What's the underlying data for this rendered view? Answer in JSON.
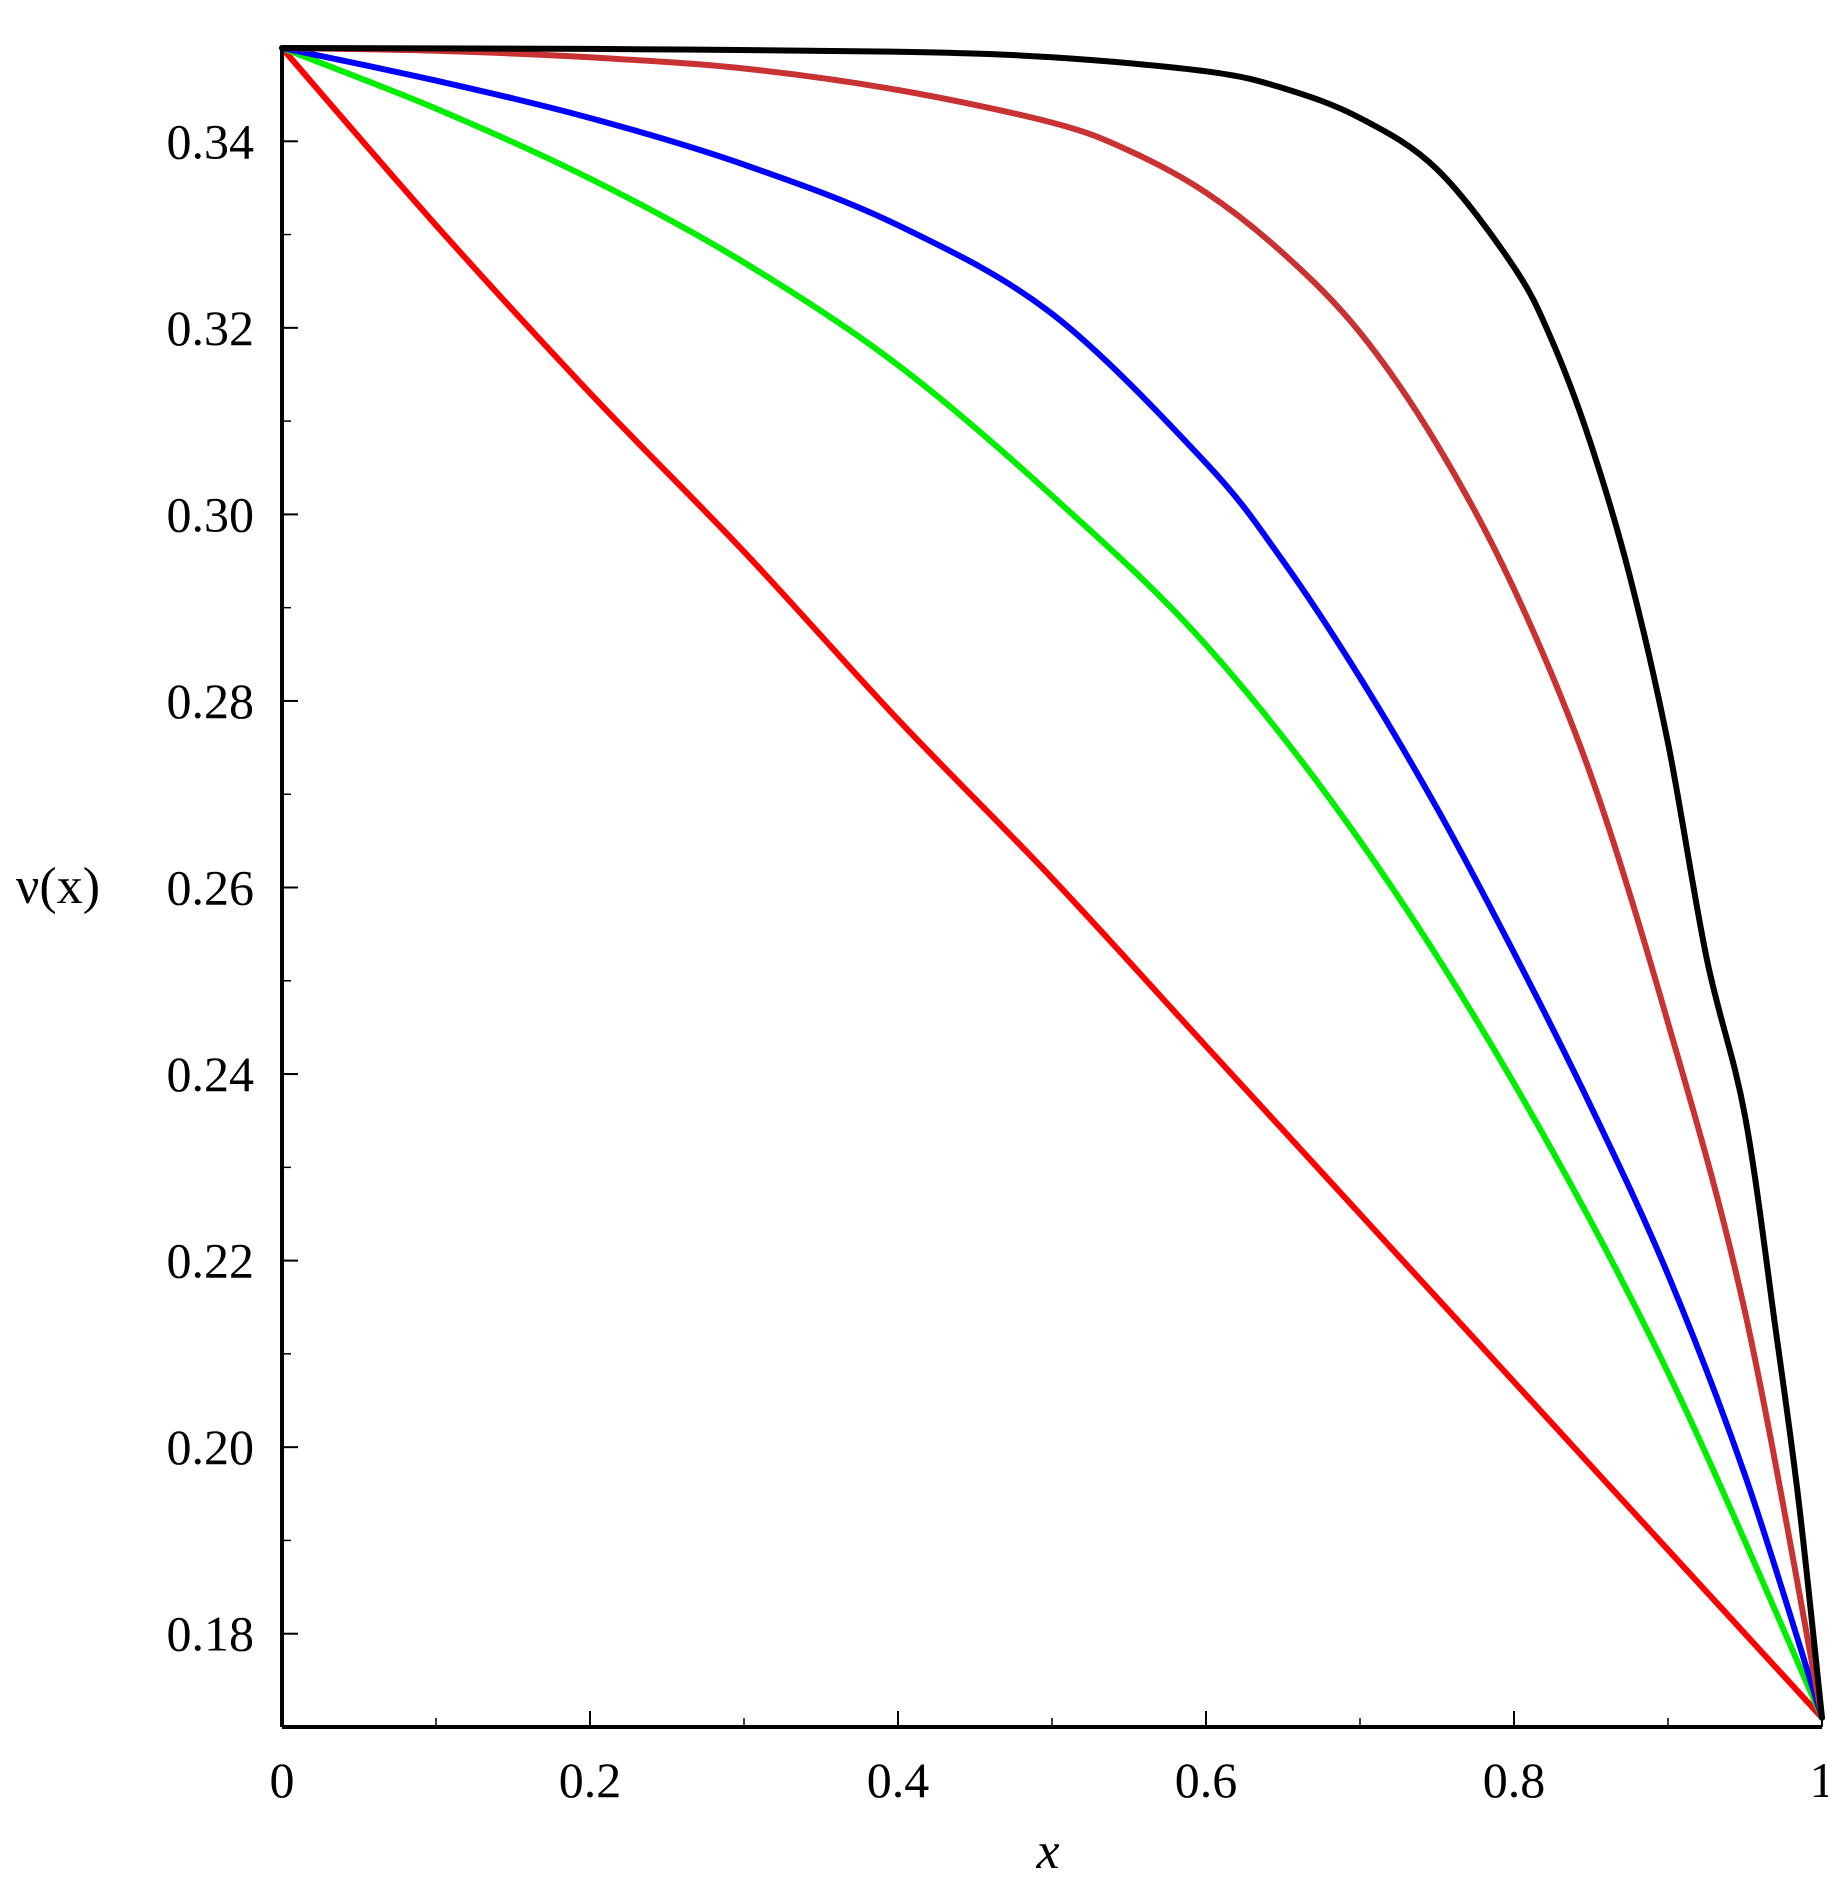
{
  "chart_data": {
    "type": "line",
    "title": "",
    "xlabel": "x",
    "ylabel": "ν(x)",
    "xlim": [
      0,
      1
    ],
    "ylim": [
      0.17,
      0.35
    ],
    "grid": false,
    "x_ticks": [
      {
        "value": 0,
        "label": "0"
      },
      {
        "value": 0.2,
        "label": "0.2"
      },
      {
        "value": 0.4,
        "label": "0.4"
      },
      {
        "value": 0.6,
        "label": "0.6"
      },
      {
        "value": 0.8,
        "label": "0.8"
      },
      {
        "value": 1,
        "label": "1"
      }
    ],
    "y_ticks": [
      {
        "value": 0.18,
        "label": "0.18"
      },
      {
        "value": 0.2,
        "label": "0.20"
      },
      {
        "value": 0.22,
        "label": "0.22"
      },
      {
        "value": 0.24,
        "label": "0.24"
      },
      {
        "value": 0.26,
        "label": "0.26"
      },
      {
        "value": 0.28,
        "label": "0.28"
      },
      {
        "value": 0.3,
        "label": "0.30"
      },
      {
        "value": 0.32,
        "label": "0.32"
      },
      {
        "value": 0.34,
        "label": "0.34"
      }
    ],
    "x_minor_step": 0.1,
    "y_minor_step": 0.01,
    "series": [
      {
        "color": "#ff0000",
        "x": [
          0,
          0.1,
          0.2,
          0.3,
          0.4,
          0.5,
          0.6,
          0.7,
          0.8,
          0.9,
          1.0
        ],
        "y": [
          0.35,
          0.331,
          0.313,
          0.296,
          0.278,
          0.261,
          0.243,
          0.225,
          0.207,
          0.189,
          0.171
        ]
      },
      {
        "color": "#00ee00",
        "x": [
          0,
          0.1,
          0.2,
          0.3,
          0.4,
          0.5,
          0.6,
          0.7,
          0.8,
          0.9,
          1.0
        ],
        "y": [
          0.35,
          0.3435,
          0.336,
          0.327,
          0.316,
          0.302,
          0.286,
          0.265,
          0.239,
          0.208,
          0.171
        ]
      },
      {
        "color": "#0000ff",
        "x": [
          0,
          0.1,
          0.2,
          0.3,
          0.4,
          0.5,
          0.6,
          0.65,
          0.7,
          0.75,
          0.8,
          0.85,
          0.9,
          0.95,
          1.0
        ],
        "y": [
          0.35,
          0.3465,
          0.3425,
          0.3375,
          0.331,
          0.3215,
          0.3055,
          0.295,
          0.2825,
          0.2685,
          0.253,
          0.2365,
          0.2185,
          0.197,
          0.171
        ]
      },
      {
        "color": "#c83232",
        "x": [
          0,
          0.1,
          0.2,
          0.3,
          0.4,
          0.5,
          0.55,
          0.6,
          0.65,
          0.7,
          0.75,
          0.8,
          0.85,
          0.9,
          0.95,
          1.0
        ],
        "y": [
          0.35,
          0.3497,
          0.349,
          0.3478,
          0.3455,
          0.342,
          0.339,
          0.3345,
          0.328,
          0.3195,
          0.3075,
          0.292,
          0.272,
          0.2455,
          0.2145,
          0.171
        ]
      },
      {
        "color": "#000000",
        "x": [
          0,
          0.2,
          0.4,
          0.5,
          0.6,
          0.65,
          0.7,
          0.75,
          0.8,
          0.825,
          0.85,
          0.875,
          0.9,
          0.925,
          0.95,
          0.97,
          0.985,
          1.0
        ],
        "y": [
          0.35,
          0.3499,
          0.3496,
          0.349,
          0.3475,
          0.3457,
          0.3425,
          0.337,
          0.3265,
          0.3185,
          0.3075,
          0.2935,
          0.2755,
          0.2525,
          0.2355,
          0.2125,
          0.194,
          0.171
        ]
      }
    ]
  }
}
